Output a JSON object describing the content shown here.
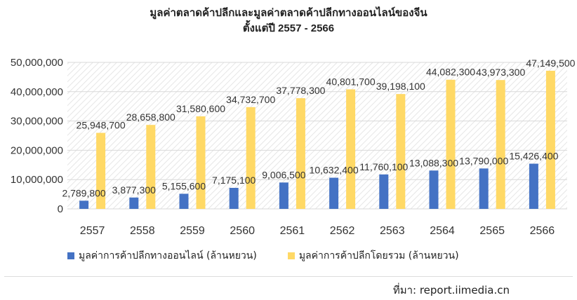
{
  "chart_data": {
    "type": "bar",
    "title": "มูลค่าตลาดค้าปลีกและมูลค่าตลาดค้าปลีกทางออนไลน์ของจีน",
    "subtitle": "ตั้งแต่ปี 2557 - 2566",
    "categories": [
      "2557",
      "2558",
      "2559",
      "2560",
      "2561",
      "2562",
      "2563",
      "2564",
      "2565",
      "2566"
    ],
    "series": [
      {
        "name": "มูลค่าการค้าปลีกทางออนไลน์ (ล้านหยวน)",
        "color": "#4472C4",
        "values": [
          2789800,
          3877300,
          5155600,
          7175100,
          9006500,
          10632400,
          11760100,
          13088300,
          13790000,
          15426400
        ],
        "labels": [
          "2,789,800",
          "3,877,300",
          "5,155,600",
          "7,175,100",
          "9,006,500",
          "10,632,400",
          "11,760,100",
          "13,088,300",
          "13,790,000",
          "15,426,400"
        ]
      },
      {
        "name": "มูลค่าการค้าปลีกโดยรวม (ล้านหยวน)",
        "color": "#FFD966",
        "values": [
          25948700,
          28658800,
          31580600,
          34732700,
          37778300,
          40801700,
          39198100,
          44082300,
          43973300,
          47149500
        ],
        "labels": [
          "25,948,700",
          "28,658,800",
          "31,580,600",
          "34,732,700",
          "37,778,300",
          "40,801,700",
          "39,198,100",
          "44,082,300",
          "43,973,300",
          "47,149,500"
        ]
      }
    ],
    "ylim": [
      0,
      50000000
    ],
    "yticks": [
      0,
      10000000,
      20000000,
      30000000,
      40000000,
      50000000
    ],
    "ytick_labels": [
      "0",
      "10,000,000",
      "20,000,000",
      "30,000,000",
      "40,000,000",
      "50,000,000"
    ],
    "grid": true,
    "legend_position": "bottom"
  },
  "source": "ที่มา: report.iimedia.cn"
}
